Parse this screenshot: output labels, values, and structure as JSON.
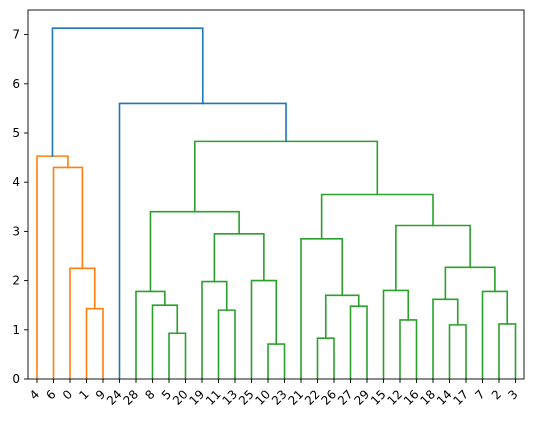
{
  "chart_data": {
    "type": "dendrogram",
    "title": "",
    "xlabel": "",
    "ylabel": "",
    "ylim": [
      0,
      7.5
    ],
    "yticks": [
      0,
      1,
      2,
      3,
      4,
      5,
      6,
      7
    ],
    "leaves": [
      "4",
      "6",
      "0",
      "1",
      "9",
      "24",
      "28",
      "8",
      "5",
      "20",
      "19",
      "11",
      "13",
      "25",
      "10",
      "23",
      "21",
      "22",
      "26",
      "27",
      "29",
      "15",
      "12",
      "16",
      "18",
      "14",
      "17",
      "7",
      "2",
      "3"
    ],
    "colors": {
      "cluster_a": "#ff7f0e",
      "cluster_b": "#2ca02c",
      "above_threshold": "#1f77b4"
    },
    "merges": [
      {
        "left": "leaf:1",
        "right": "leaf:9",
        "height": 1.43,
        "color": "cluster_a"
      },
      {
        "left": "leaf:0",
        "right": "m0",
        "height": 2.25,
        "color": "cluster_a"
      },
      {
        "left": "leaf:6",
        "right": "m1",
        "height": 4.3,
        "color": "cluster_a"
      },
      {
        "left": "leaf:4",
        "right": "m2",
        "height": 4.53,
        "color": "cluster_a"
      },
      {
        "left": "leaf:5",
        "right": "leaf:20",
        "height": 0.93,
        "color": "cluster_b"
      },
      {
        "left": "leaf:8",
        "right": "m4",
        "height": 1.5,
        "color": "cluster_b"
      },
      {
        "left": "leaf:28",
        "right": "m5",
        "height": 1.78,
        "color": "cluster_b"
      },
      {
        "left": "leaf:11",
        "right": "leaf:13",
        "height": 1.4,
        "color": "cluster_b"
      },
      {
        "left": "leaf:19",
        "right": "m7",
        "height": 1.98,
        "color": "cluster_b"
      },
      {
        "left": "leaf:10",
        "right": "leaf:23",
        "height": 0.71,
        "color": "cluster_b"
      },
      {
        "left": "leaf:25",
        "right": "m9",
        "height": 2.0,
        "color": "cluster_b"
      },
      {
        "left": "m8",
        "right": "m10",
        "height": 2.95,
        "color": "cluster_b"
      },
      {
        "left": "m6",
        "right": "m11",
        "height": 3.4,
        "color": "cluster_b"
      },
      {
        "left": "leaf:22",
        "right": "leaf:26",
        "height": 0.83,
        "color": "cluster_b"
      },
      {
        "left": "leaf:27",
        "right": "leaf:29",
        "height": 1.48,
        "color": "cluster_b"
      },
      {
        "left": "m13",
        "right": "m14",
        "height": 1.7,
        "color": "cluster_b"
      },
      {
        "left": "leaf:21",
        "right": "m15",
        "height": 2.85,
        "color": "cluster_b"
      },
      {
        "left": "leaf:12",
        "right": "leaf:16",
        "height": 1.2,
        "color": "cluster_b"
      },
      {
        "left": "leaf:15",
        "right": "m17",
        "height": 1.8,
        "color": "cluster_b"
      },
      {
        "left": "leaf:14",
        "right": "leaf:17",
        "height": 1.1,
        "color": "cluster_b"
      },
      {
        "left": "leaf:18",
        "right": "m19",
        "height": 1.62,
        "color": "cluster_b"
      },
      {
        "left": "leaf:2",
        "right": "leaf:3",
        "height": 1.12,
        "color": "cluster_b"
      },
      {
        "left": "leaf:7",
        "right": "m21",
        "height": 1.78,
        "color": "cluster_b"
      },
      {
        "left": "m20",
        "right": "m22",
        "height": 2.27,
        "color": "cluster_b"
      },
      {
        "left": "m18",
        "right": "m23",
        "height": 3.12,
        "color": "cluster_b"
      },
      {
        "left": "m16",
        "right": "m24",
        "height": 3.75,
        "color": "cluster_b"
      },
      {
        "left": "m12",
        "right": "m25",
        "height": 4.83,
        "color": "cluster_b"
      },
      {
        "left": "leaf:24",
        "right": "m26",
        "height": 5.6,
        "color": "above_threshold"
      },
      {
        "left": "m3",
        "right": "m27",
        "height": 7.13,
        "color": "above_threshold"
      }
    ]
  }
}
